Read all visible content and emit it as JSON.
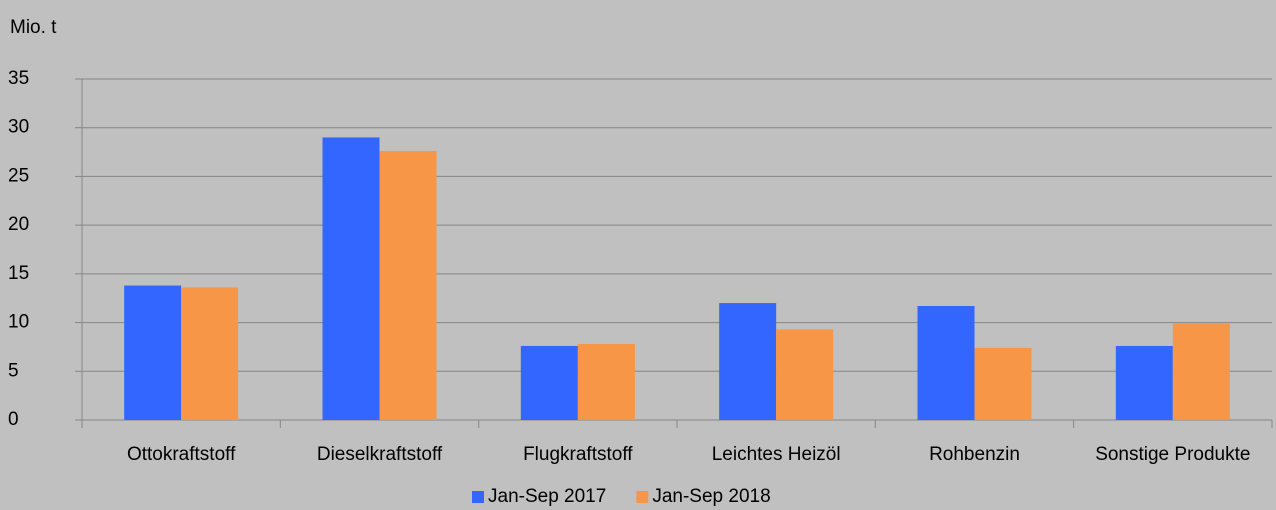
{
  "chart_data": {
    "type": "bar",
    "y_axis_label": "Mio. t",
    "categories": [
      "Ottokraftstoff",
      "Dieselkraftstoff",
      "Flugkraftstoff",
      "Leichtes Heizöl",
      "Rohbenzin",
      "Sonstige Produkte"
    ],
    "series": [
      {
        "name": "Jan-Sep 2017",
        "color": "#3366ff",
        "values": [
          13.8,
          29.0,
          7.6,
          12.0,
          11.7,
          7.6
        ]
      },
      {
        "name": "Jan-Sep 2018",
        "color": "#f79646",
        "values": [
          13.6,
          27.6,
          7.8,
          9.3,
          7.4,
          9.9
        ]
      }
    ],
    "ylim": [
      0,
      35
    ],
    "yticks": [
      0,
      5,
      10,
      15,
      20,
      25,
      30,
      35
    ],
    "grid": true,
    "legend": "bottom"
  }
}
